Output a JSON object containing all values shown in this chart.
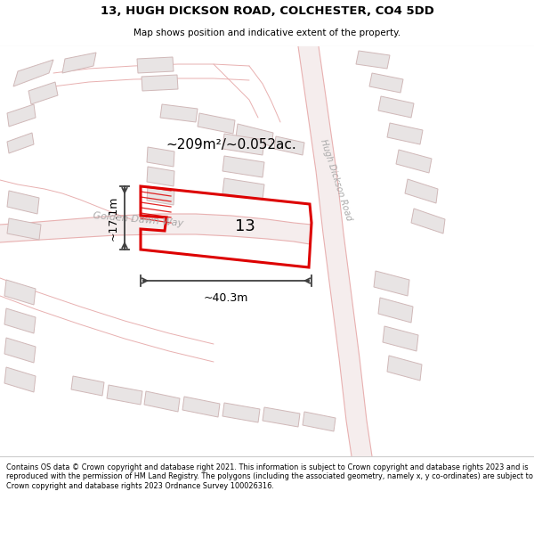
{
  "title_line1": "13, HUGH DICKSON ROAD, COLCHESTER, CO4 5DD",
  "title_line2": "Map shows position and indicative extent of the property.",
  "footer_text": "Contains OS data © Crown copyright and database right 2021. This information is subject to Crown copyright and database rights 2023 and is reproduced with the permission of HM Land Registry. The polygons (including the associated geometry, namely x, y co-ordinates) are subject to Crown copyright and database rights 2023 Ordnance Survey 100026316.",
  "area_label": "~209m²/~0.052ac.",
  "plot_number": "13",
  "dim_width": "~40.3m",
  "dim_height": "~17.1m",
  "road_label_1": "Golden Dawn Way",
  "road_label_2": "Hugh Dickson Road",
  "map_bg": "#ffffff",
  "plot_stroke": "#dd0000",
  "road_line_color": "#e8b0b0",
  "road_fill_color": "#f5eded",
  "building_fill": "#e8e4e4",
  "building_stroke": "#d0b8b8",
  "dim_line_color": "#404040",
  "road_label_color": "#aaaaaa",
  "header_separator": "#cccccc"
}
